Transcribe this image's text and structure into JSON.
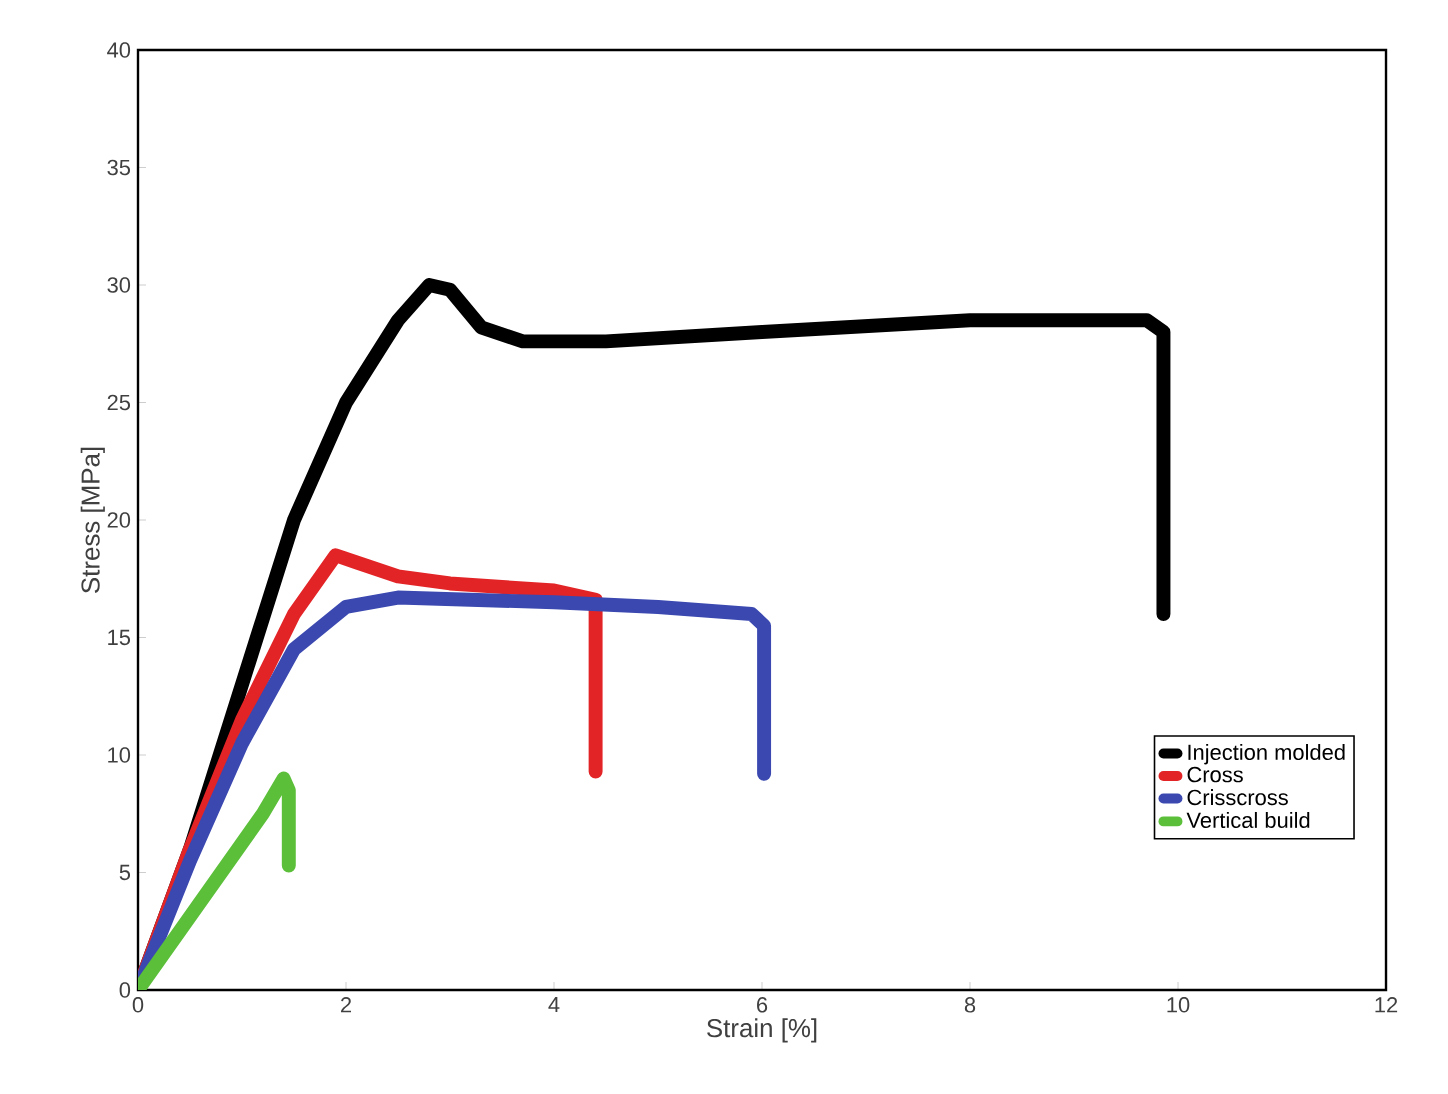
{
  "chart_data": {
    "type": "line",
    "xlabel": "Strain [%]",
    "ylabel": "Stress [MPa]",
    "xlim": [
      0,
      12
    ],
    "xticks": [
      0,
      2,
      4,
      6,
      8,
      10,
      12
    ],
    "ylim": [
      0,
      40
    ],
    "yticks": [
      0,
      5,
      10,
      15,
      20,
      25,
      30,
      35,
      40
    ],
    "grid": false,
    "legend": "bottom right",
    "series": [
      {
        "name": "Injection molded",
        "color": "#000000",
        "x": [
          0,
          0.5,
          1,
          1.5,
          2,
          2.5,
          2.8,
          3,
          3.3,
          3.7,
          4.5,
          6,
          8,
          9.7,
          9.86,
          9.86
        ],
        "values": [
          0,
          6,
          13,
          20,
          25,
          28.5,
          30,
          29.8,
          28.2,
          27.6,
          27.6,
          28,
          28.5,
          28.5,
          28,
          16
        ]
      },
      {
        "name": "Cross",
        "color": "#e32427",
        "x": [
          0,
          0.5,
          1,
          1.5,
          1.9,
          2.1,
          2.5,
          3,
          4,
          4.4,
          4.4
        ],
        "values": [
          0,
          6,
          11.5,
          16,
          18.5,
          18.2,
          17.6,
          17.3,
          17,
          16.6,
          9.3
        ]
      },
      {
        "name": "Crisscross",
        "color": "#3a48b0",
        "x": [
          0,
          0.5,
          1,
          1.5,
          2,
          2.5,
          4,
          5,
          5.9,
          6.02,
          6.02
        ],
        "values": [
          0,
          5.5,
          10.5,
          14.5,
          16.3,
          16.7,
          16.5,
          16.3,
          16,
          15.5,
          9.2
        ]
      },
      {
        "name": "Vertical build",
        "color": "#5cbf3a",
        "x": [
          0,
          0.4,
          0.8,
          1.2,
          1.4,
          1.45,
          1.45
        ],
        "values": [
          0,
          2.5,
          5,
          7.5,
          9,
          8.5,
          5.3
        ]
      }
    ]
  }
}
